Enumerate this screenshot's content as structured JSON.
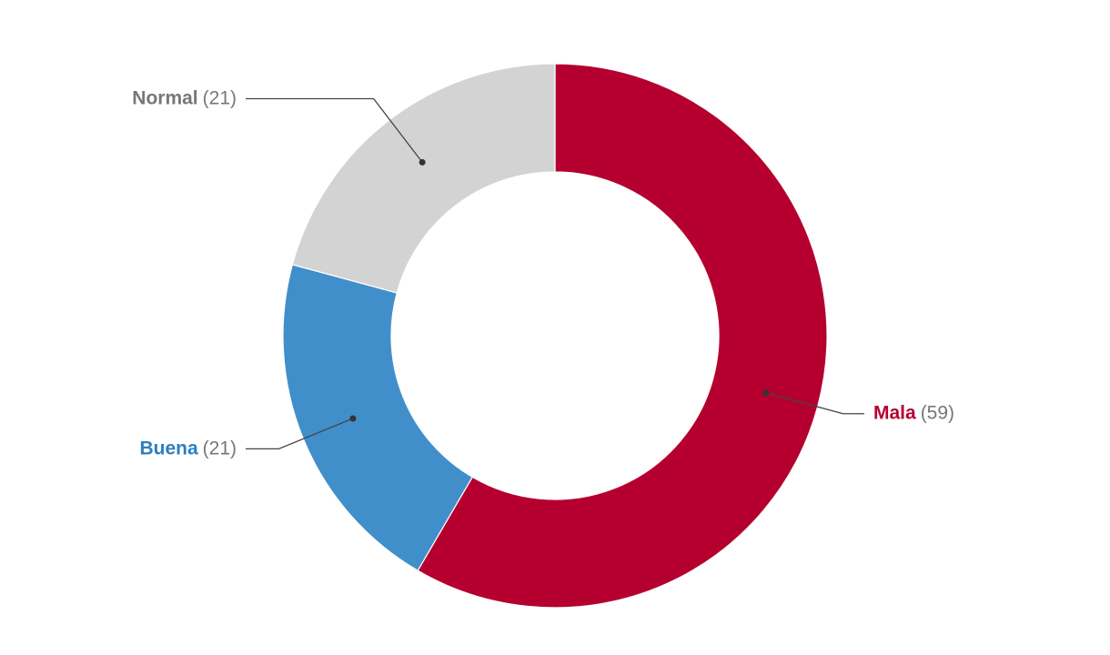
{
  "chart_data": {
    "type": "donut",
    "categories": [
      "Mala",
      "Buena",
      "Normal"
    ],
    "values": [
      59,
      21,
      21
    ],
    "value_labels": [
      "(59)",
      "(21)",
      "(21)"
    ],
    "colors": [
      "#b5002f",
      "#418fca",
      "#d3d3d3"
    ],
    "label_colors": [
      "#b5002f",
      "#2e7ebd",
      "#777777"
    ]
  }
}
